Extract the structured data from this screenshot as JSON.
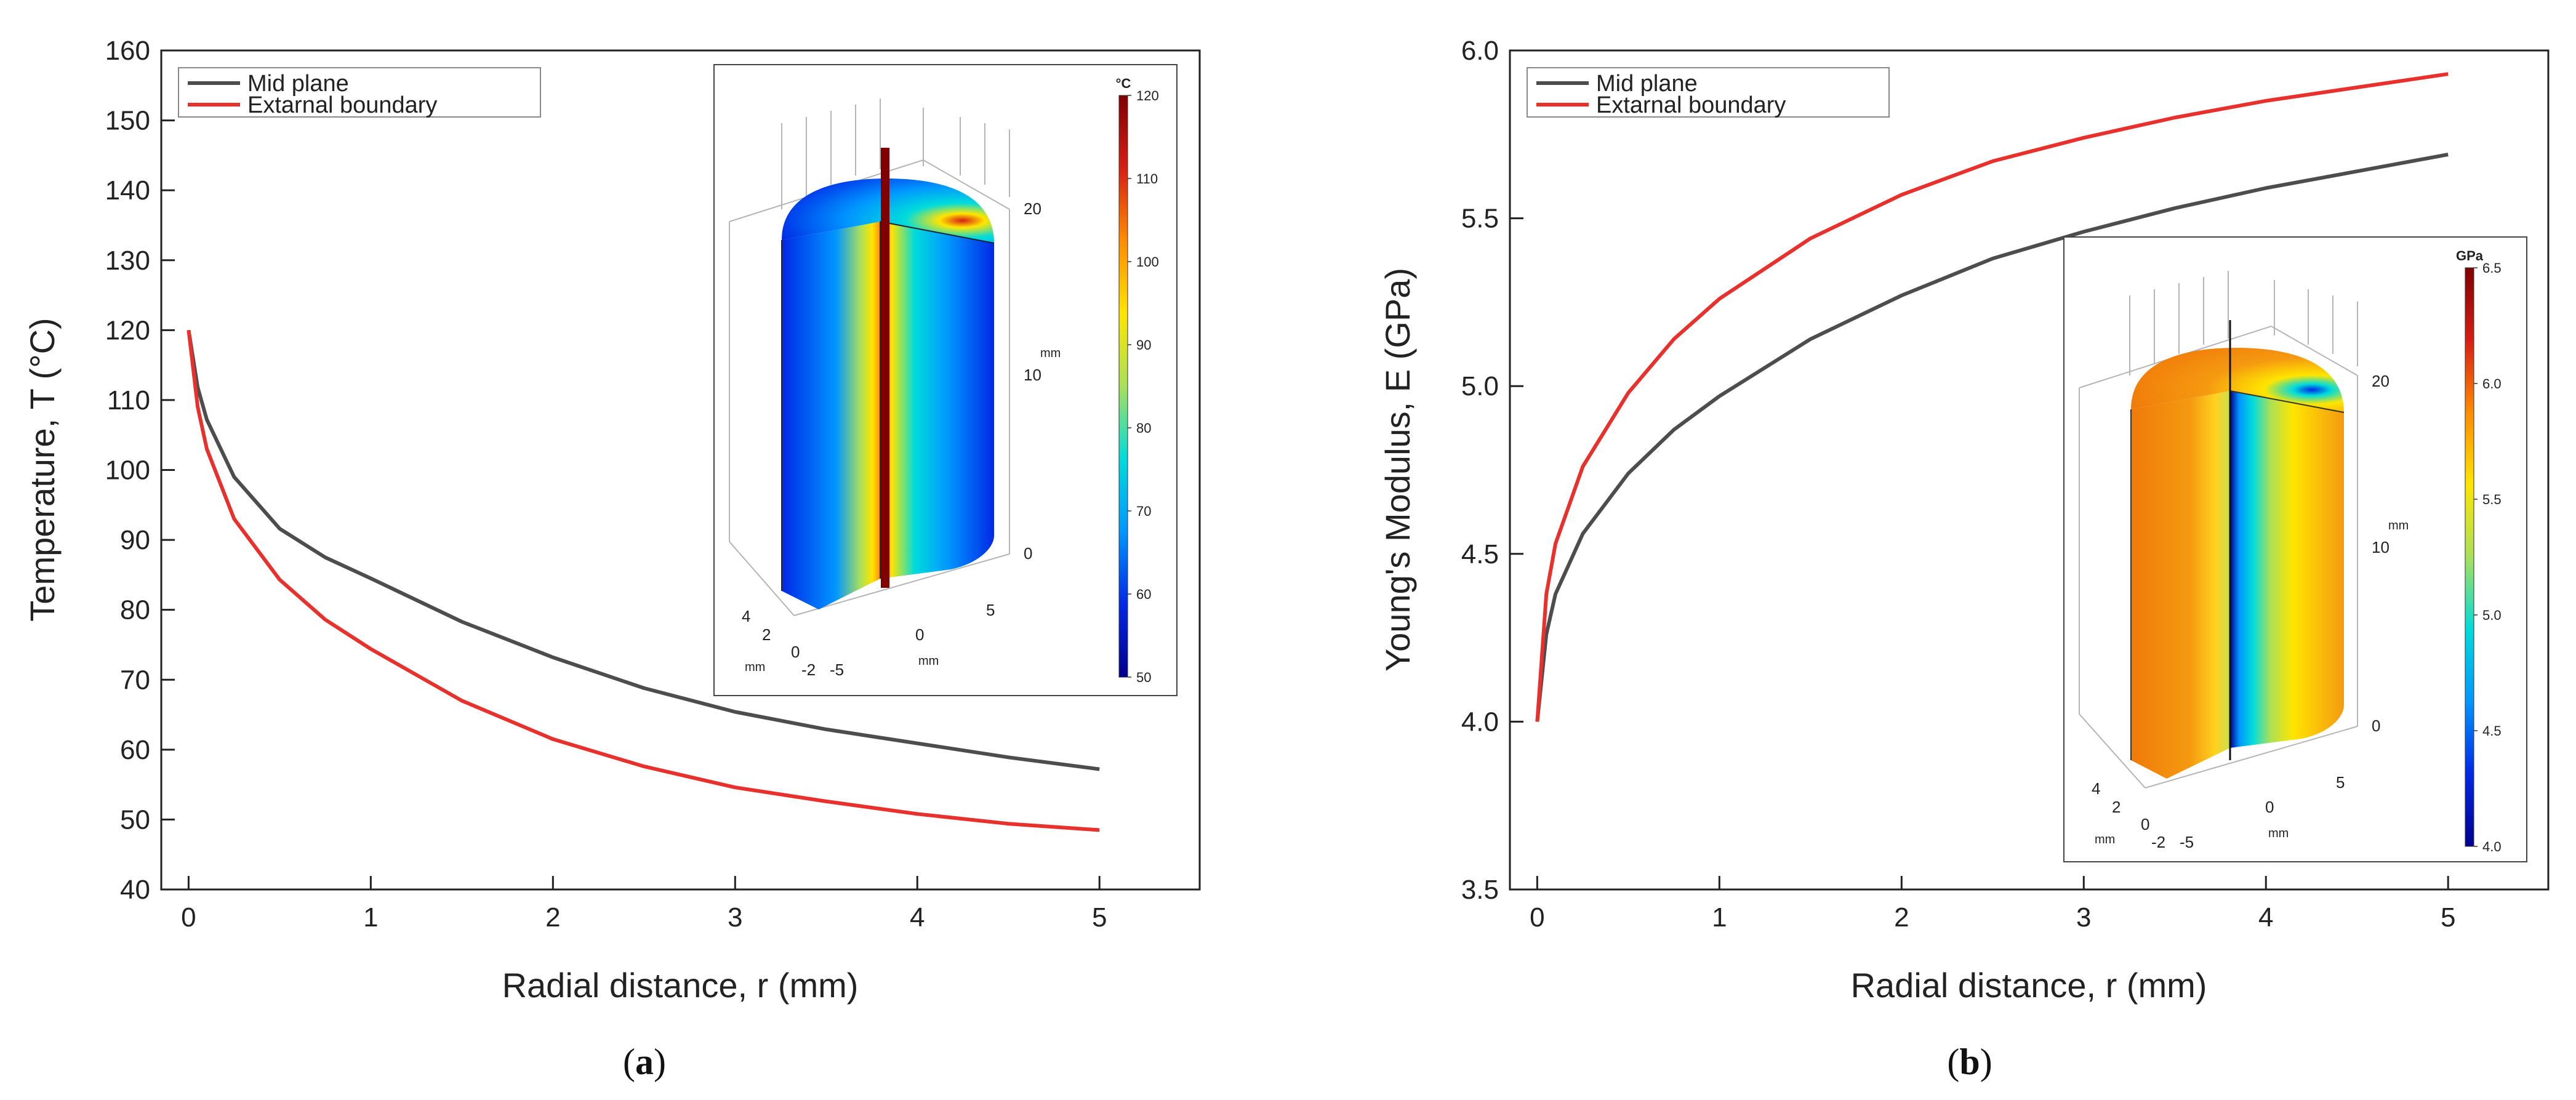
{
  "chart_data": [
    {
      "type": "line",
      "panel_label": "a",
      "xlabel": "Radial distance, r (mm)",
      "ylabel": "Temperature, T (°C)",
      "xlim": [
        -0.15,
        5.55
      ],
      "ylim": [
        40,
        160
      ],
      "xticks": [
        "0",
        "1",
        "2",
        "3",
        "4",
        "5"
      ],
      "yticks": [
        "40",
        "50",
        "60",
        "70",
        "80",
        "90",
        "100",
        "110",
        "120",
        "130",
        "140",
        "150",
        "160"
      ],
      "x": [
        0,
        0.05,
        0.1,
        0.25,
        0.5,
        0.75,
        1,
        1.5,
        2,
        2.5,
        3,
        3.5,
        4,
        4.5,
        5
      ],
      "series": [
        {
          "name": "Mid plane",
          "color": "#4d4d4d",
          "values": [
            120,
            111.8,
            107.2,
            99.0,
            91.6,
            87.5,
            84.5,
            78.3,
            73.2,
            68.8,
            65.4,
            62.9,
            60.9,
            58.9,
            57.2
          ]
        },
        {
          "name": "Extarnal boundary",
          "color": "#e8302c",
          "values": [
            120,
            109.0,
            103.0,
            93.0,
            84.3,
            78.6,
            74.4,
            67.0,
            61.5,
            57.6,
            54.6,
            52.6,
            50.8,
            49.4,
            48.5
          ]
        }
      ],
      "legend": "top-left",
      "inset": {
        "colorbar_unit": "°C",
        "colorbar_ticks": [
          "120",
          "110",
          "100",
          "90",
          "80",
          "70",
          "60",
          "50"
        ],
        "colors": [
          "#800000",
          "#d71e14",
          "#ff8c00",
          "#ffe500",
          "#a8e05a",
          "#00dcdc",
          "#0096ff",
          "#0028e6",
          "#00008c"
        ],
        "z_axis_ticks": [
          "20",
          "10",
          "0"
        ],
        "z_axis_unit": "mm",
        "x_axis_ticks": [
          "4",
          "2",
          "0",
          "-2"
        ],
        "x_axis_unit": "mm",
        "y_axis_ticks": [
          "5",
          "0",
          "-5"
        ],
        "y_axis_unit": "mm"
      }
    },
    {
      "type": "line",
      "panel_label": "b",
      "xlabel": "Radial distance, r (mm)",
      "ylabel": "Young's Modulus, E (GPa)",
      "xlim": [
        -0.15,
        5.55
      ],
      "ylim": [
        3.5,
        6.0
      ],
      "xticks": [
        "0",
        "1",
        "2",
        "3",
        "4",
        "5"
      ],
      "yticks": [
        "3.5",
        "4.0",
        "4.5",
        "5.0",
        "5.5",
        "6.0"
      ],
      "x": [
        0,
        0.05,
        0.1,
        0.25,
        0.5,
        0.75,
        1,
        1.5,
        2,
        2.5,
        3,
        3.5,
        4,
        4.5,
        5
      ],
      "series": [
        {
          "name": "Mid plane",
          "color": "#4d4d4d",
          "values": [
            4.0,
            4.26,
            4.38,
            4.56,
            4.74,
            4.87,
            4.97,
            5.14,
            5.27,
            5.38,
            5.46,
            5.53,
            5.59,
            5.64,
            5.69
          ]
        },
        {
          "name": "Extarnal boundary",
          "color": "#e8302c",
          "values": [
            4.0,
            4.38,
            4.53,
            4.76,
            4.98,
            5.14,
            5.26,
            5.44,
            5.57,
            5.67,
            5.74,
            5.8,
            5.85,
            5.89,
            5.93
          ]
        }
      ],
      "legend": "top-left",
      "inset": {
        "colorbar_unit": "GPa",
        "colorbar_ticks": [
          "6.5",
          "6.0",
          "5.5",
          "5.0",
          "4.5",
          "4.0"
        ],
        "colors": [
          "#800000",
          "#d71e14",
          "#ff8c00",
          "#ffe500",
          "#a8e05a",
          "#00dcdc",
          "#0096ff",
          "#0028e6",
          "#00008c"
        ],
        "z_axis_ticks": [
          "20",
          "10",
          "0"
        ],
        "z_axis_unit": "mm",
        "x_axis_ticks": [
          "4",
          "2",
          "0",
          "-2"
        ],
        "x_axis_unit": "mm",
        "y_axis_ticks": [
          "5",
          "0",
          "-5"
        ],
        "y_axis_unit": "mm"
      }
    }
  ]
}
